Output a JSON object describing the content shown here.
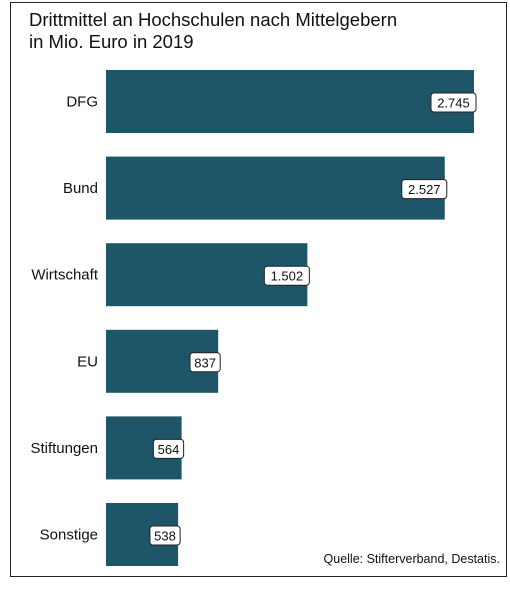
{
  "title_lines": [
    "Drittmittel an Hochschulen nach Mittelgebern",
    "in Mio. Euro in 2019"
  ],
  "source": "Quelle: Stifterverband, Destatis.",
  "colors": {
    "bar": "#1e5568",
    "frame": "#222222",
    "text": "#111111"
  },
  "chart_data": {
    "type": "bar",
    "orientation": "horizontal",
    "title": "Drittmittel an Hochschulen nach Mittelgebern in Mio. Euro in 2019",
    "categories": [
      "DFG",
      "Bund",
      "Wirtschaft",
      "EU",
      "Stiftungen",
      "Sonstige"
    ],
    "values": [
      2745,
      2527,
      1502,
      837,
      564,
      538
    ],
    "value_labels": [
      "2.745",
      "2.527",
      "1.502",
      "837",
      "564",
      "538"
    ],
    "xlim": [
      0,
      2745
    ],
    "grid": false,
    "legend": "none"
  }
}
